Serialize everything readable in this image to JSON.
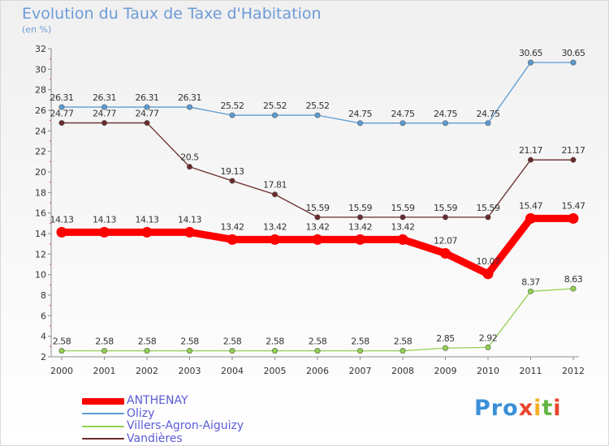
{
  "title": "Evolution du Taux de Taxe d'Habitation",
  "subtitle": "(en %)",
  "logo": "Proxiti",
  "chart_data": {
    "type": "line",
    "title": "Evolution du Taux de Taxe d'Habitation",
    "ylabel": "(en %)",
    "xlabel": "",
    "ylim": [
      2,
      32
    ],
    "y_ticks": [
      2,
      4,
      6,
      8,
      10,
      12,
      14,
      16,
      18,
      20,
      22,
      24,
      26,
      28,
      30,
      32
    ],
    "grid": false,
    "legend_position": "bottom-left",
    "x": [
      "2000",
      "2001",
      "2002",
      "2003",
      "2004",
      "2005",
      "2006",
      "2007",
      "2008",
      "2009",
      "2010",
      "2011",
      "2012"
    ],
    "series": [
      {
        "name": "ANTHENAY",
        "color": "#ff0000",
        "values": [
          14.13,
          14.13,
          14.13,
          14.13,
          13.42,
          13.42,
          13.42,
          13.42,
          13.42,
          12.07,
          10.07,
          15.47,
          15.47
        ],
        "labels": [
          "14.13",
          "14.13",
          "14.13",
          "14.13",
          "13.42",
          "13.42",
          "13.42",
          "13.42",
          "13.42",
          "12.07",
          "10.07",
          "15.47",
          "15.47"
        ]
      },
      {
        "name": "Olizy",
        "color": "#5b9bd5",
        "values": [
          26.31,
          26.31,
          26.31,
          26.31,
          25.52,
          25.52,
          25.52,
          24.75,
          24.75,
          24.75,
          24.75,
          30.65,
          30.65
        ],
        "labels": [
          "26.31",
          "26.31",
          "26.31",
          "26.31",
          "25.52",
          "25.52",
          "25.52",
          "24.75",
          "24.75",
          "24.75",
          "24.75",
          "30.65",
          "30.65"
        ]
      },
      {
        "name": "Villers-Agron-Aiguizy",
        "color": "#92d050",
        "values": [
          2.58,
          2.58,
          2.58,
          2.58,
          2.58,
          2.58,
          2.58,
          2.58,
          2.58,
          2.85,
          2.92,
          8.37,
          8.63
        ],
        "labels": [
          "2.58",
          "2.58",
          "2.58",
          "2.58",
          "2.58",
          "2.58",
          "2.58",
          "2.58",
          "2.58",
          "2.85",
          "2.92",
          "8.37",
          "8.63"
        ]
      },
      {
        "name": "Vandières",
        "color": "#6b2a2a",
        "values": [
          24.77,
          24.77,
          24.77,
          20.5,
          19.13,
          17.81,
          15.59,
          15.59,
          15.59,
          15.59,
          15.59,
          21.17,
          21.17
        ],
        "labels": [
          "24.77",
          "24.77",
          "24.77",
          "20.5",
          "19.13",
          "17.81",
          "15.59",
          "15.59",
          "15.59",
          "15.59",
          "15.59",
          "21.17",
          "21.17"
        ]
      }
    ]
  }
}
